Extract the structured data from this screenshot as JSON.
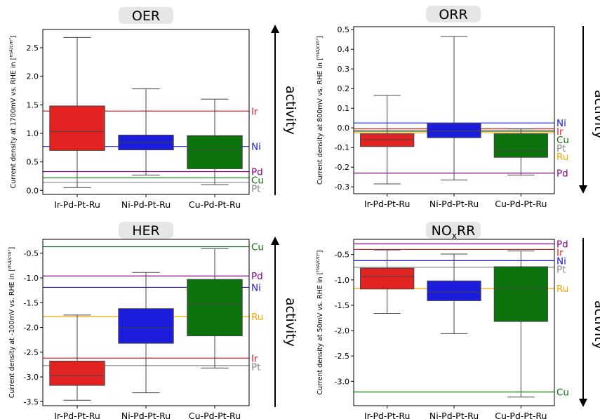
{
  "chart_data": [
    {
      "type": "box",
      "title": "OER",
      "ylabel": "Current density at 1700mV vs. RHE in [mA/cm²]",
      "ylabel_prefix": "Current density at 1700mV vs. RHE in [",
      "unit_num": "mA",
      "unit_den": "cm²",
      "ylim": [
        -0.07,
        2.82
      ],
      "yticks": [
        0.0,
        0.5,
        1.0,
        1.5,
        2.0,
        2.5
      ],
      "ytick_labels": [
        "0.0",
        "0.5",
        "1.0",
        "1.5",
        "2.0",
        "2.5"
      ],
      "categories": [
        "Ir-Pd-Pt-Ru",
        "Ni-Pd-Pt-Ru",
        "Cu-Pd-Pt-Ru"
      ],
      "boxes": [
        {
          "whisker_low": 0.05,
          "q1": 0.7,
          "median": 1.03,
          "q3": 1.48,
          "whisker_high": 2.68,
          "color": "#e32222"
        },
        {
          "whisker_low": 0.27,
          "q1": 0.71,
          "median": 0.84,
          "q3": 0.97,
          "whisker_high": 1.78,
          "color": "#1c1cdd"
        },
        {
          "whisker_low": 0.1,
          "q1": 0.38,
          "median": 0.71,
          "q3": 0.96,
          "whisker_high": 1.6,
          "color": "#0c730c"
        }
      ],
      "reference_lines": [
        {
          "label": "Ir",
          "value": 1.39,
          "color": "#e32222"
        },
        {
          "label": "Ni",
          "value": 0.77,
          "color": "#1c1cdd"
        },
        {
          "label": "Pd",
          "value": 0.33,
          "color": "#800080"
        },
        {
          "label": "Cu",
          "value": 0.22,
          "color": "#0c730c"
        },
        {
          "label": "Pt",
          "value": 0.14,
          "color": "#888888"
        }
      ],
      "activity_label": "activity",
      "activity_arrow": "up"
    },
    {
      "type": "box",
      "title": "ORR",
      "ylabel": "Current density at 800mV vs. RHE in [mA/cm²]",
      "ylabel_prefix": "Current density at 800mV vs. RHE in [",
      "unit_num": "mA",
      "unit_den": "cm²",
      "ylim": [
        -0.335,
        0.515
      ],
      "yticks": [
        -0.3,
        -0.2,
        -0.1,
        0.0,
        0.1,
        0.2,
        0.3,
        0.4,
        0.5
      ],
      "ytick_labels": [
        "-0.3",
        "-0.2",
        "-0.1",
        "0.0",
        "0.1",
        "0.2",
        "0.3",
        "0.4",
        "0.5"
      ],
      "categories": [
        "Ir-Pd-Pt-Ru",
        "Ni-Pd-Pt-Ru",
        "Cu-Pd-Pt-Ru"
      ],
      "boxes": [
        {
          "whisker_low": -0.285,
          "q1": -0.095,
          "median": -0.06,
          "q3": -0.03,
          "whisker_high": 0.165,
          "color": "#e32222"
        },
        {
          "whisker_low": -0.265,
          "q1": -0.05,
          "median": -0.015,
          "q3": 0.022,
          "whisker_high": 0.465,
          "color": "#1c1cdd"
        },
        {
          "whisker_low": -0.24,
          "q1": -0.15,
          "median": -0.118,
          "q3": -0.03,
          "whisker_high": -0.005,
          "color": "#0c730c"
        }
      ],
      "reference_lines": [
        {
          "label": "Ni",
          "value": 0.025,
          "color": "#1c1cdd"
        },
        {
          "label": "Ir",
          "value": -0.005,
          "color": "#e32222"
        },
        {
          "label": "Cu",
          "value": -0.015,
          "color": "#0c730c"
        },
        {
          "label": "Pt",
          "value": -0.018,
          "color": "#888888"
        },
        {
          "label": "Ru",
          "value": -0.025,
          "color": "#f5a500"
        },
        {
          "label": "Pd",
          "value": -0.23,
          "color": "#800080"
        }
      ],
      "activity_label": "activity",
      "activity_arrow": "down"
    },
    {
      "type": "box",
      "title": "HER",
      "ylabel": "Current density at -100mV vs. RHE in [mA/cm²]",
      "ylabel_prefix": "Current density at -100mV vs. RHE in [",
      "unit_num": "mA",
      "unit_den": "cm²",
      "ylim": [
        -3.58,
        -0.22
      ],
      "yticks": [
        -3.5,
        -3.0,
        -2.5,
        -2.0,
        -1.5,
        -1.0,
        -0.5
      ],
      "ytick_labels": [
        "-3.5",
        "-3.0",
        "-2.5",
        "-2.0",
        "-1.5",
        "-1.0",
        "-0.5"
      ],
      "categories": [
        "Ir-Pd-Pt-Ru",
        "Ni-Pd-Pt-Ru",
        "Cu-Pd-Pt-Ru"
      ],
      "boxes": [
        {
          "whisker_low": -3.47,
          "q1": -3.17,
          "median": -2.98,
          "q3": -2.68,
          "whisker_high": -1.75,
          "color": "#e32222"
        },
        {
          "whisker_low": -3.32,
          "q1": -2.32,
          "median": -2.01,
          "q3": -1.62,
          "whisker_high": -0.89,
          "color": "#1c1cdd"
        },
        {
          "whisker_low": -2.82,
          "q1": -2.17,
          "median": -1.53,
          "q3": -1.03,
          "whisker_high": -0.41,
          "color": "#0c730c"
        }
      ],
      "reference_lines": [
        {
          "label": "Cu",
          "value": -0.37,
          "color": "#0c730c"
        },
        {
          "label": "Pd",
          "value": -0.96,
          "color": "#800080"
        },
        {
          "label": "Ni",
          "value": -1.19,
          "color": "#1c1cdd"
        },
        {
          "label": "Ru",
          "value": -1.78,
          "color": "#f5a500"
        },
        {
          "label": "Ir",
          "value": -2.62,
          "color": "#e32222"
        },
        {
          "label": "Pt",
          "value": -2.77,
          "color": "#888888"
        }
      ],
      "activity_label": "activity",
      "activity_arrow": "up"
    },
    {
      "type": "box",
      "title": "NOxRR",
      "title_main": "NO",
      "title_sub": "x",
      "title_end": "RR",
      "ylabel": "Current density at 50mV vs. RHE in [mA/cm²]",
      "ylabel_prefix": "Current density at 50mV vs. RHE in [",
      "unit_num": "mA",
      "unit_den": "cm²",
      "ylim": [
        -3.48,
        -0.2
      ],
      "yticks": [
        -3.0,
        -2.5,
        -2.0,
        -1.5,
        -1.0,
        -0.5
      ],
      "ytick_labels": [
        "-3.0",
        "-2.5",
        "-2.0",
        "-1.5",
        "-1.0",
        "-0.5"
      ],
      "categories": [
        "Ir-Pd-Pt-Ru",
        "Ni-Pd-Pt-Ru",
        "Cu-Pd-Pt-Ru"
      ],
      "boxes": [
        {
          "whisker_low": -1.66,
          "q1": -1.18,
          "median": -0.93,
          "q3": -0.77,
          "whisker_high": -0.41,
          "color": "#e32222"
        },
        {
          "whisker_low": -2.06,
          "q1": -1.41,
          "median": -1.24,
          "q3": -1.02,
          "whisker_high": -0.49,
          "color": "#1c1cdd"
        },
        {
          "whisker_low": -3.31,
          "q1": -1.82,
          "median": -1.16,
          "q3": -0.74,
          "whisker_high": -0.43,
          "color": "#0c730c"
        }
      ],
      "reference_lines": [
        {
          "label": "Pd",
          "value": -0.29,
          "color": "#800080"
        },
        {
          "label": "Ir",
          "value": -0.4,
          "color": "#e32222"
        },
        {
          "label": "Ni",
          "value": -0.62,
          "color": "#1c1cdd"
        },
        {
          "label": "Pt",
          "value": -0.75,
          "color": "#888888"
        },
        {
          "label": "Ru",
          "value": -1.17,
          "color": "#f5a500"
        },
        {
          "label": "Cu",
          "value": -3.21,
          "color": "#0c730c"
        }
      ],
      "activity_label": "activity",
      "activity_arrow": "down"
    }
  ]
}
